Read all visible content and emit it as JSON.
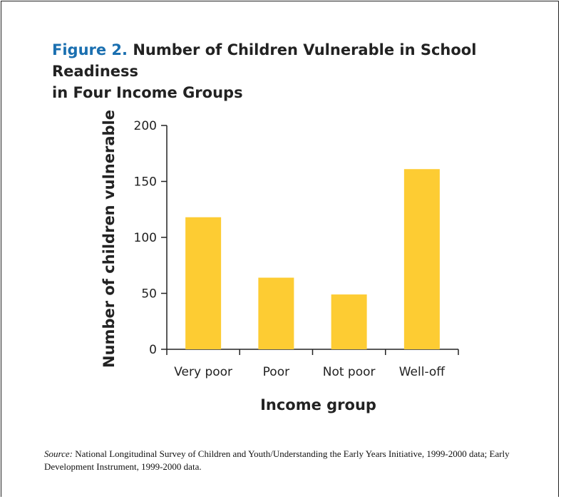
{
  "figure": {
    "label": "Figure 2.",
    "title_line1": "Number of Children Vulnerable in School Readiness",
    "title_line2": "in Four Income Groups"
  },
  "source": {
    "label": "Source:",
    "text": "National Longitudinal Survey of Children and Youth/Understanding the Early Years Initiative, 1999-2000 data; Early Development Instrument, 1999-2000 data."
  },
  "chart_data": {
    "type": "bar",
    "categories": [
      "Very poor",
      "Poor",
      "Not poor",
      "Well-off"
    ],
    "values": [
      118,
      64,
      49,
      161
    ],
    "xlabel": "Income group",
    "ylabel": "Number of children vulnerable",
    "ylim": [
      0,
      200
    ],
    "yticks": [
      0,
      50,
      100,
      150,
      200
    ],
    "grid": false,
    "bar_color": "#fdcc33"
  }
}
